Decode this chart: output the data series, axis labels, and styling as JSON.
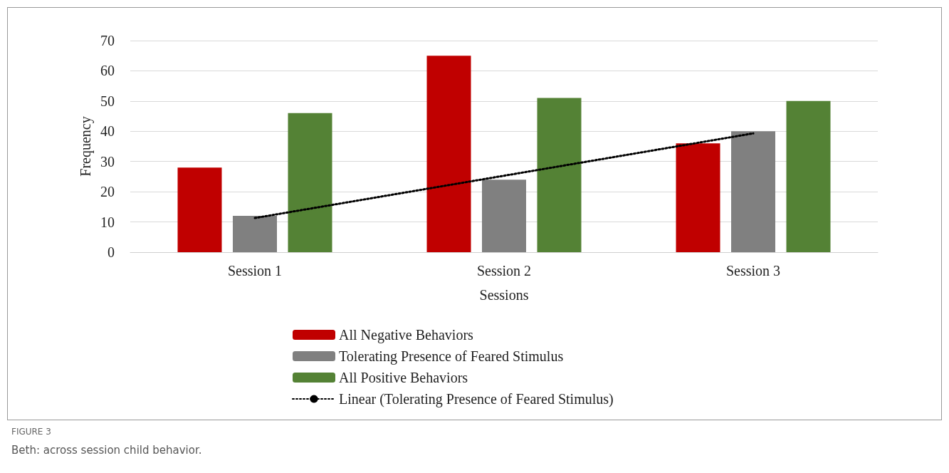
{
  "chart_data": {
    "type": "bar",
    "categories": [
      "Session 1",
      "Session 2",
      "Session 3"
    ],
    "xlabel": "Sessions",
    "ylabel": "Frequency",
    "ylim": [
      0,
      70
    ],
    "yticks": [
      0,
      10,
      20,
      30,
      40,
      50,
      60,
      70
    ],
    "grid": "y",
    "legend": "bottom",
    "series": [
      {
        "name": "All Negative Behaviors",
        "color": "#c00000",
        "values": [
          28,
          65,
          36
        ]
      },
      {
        "name": "Tolerating Presence of Feared Stimulus",
        "color": "#808080",
        "values": [
          12,
          24,
          40
        ]
      },
      {
        "name": "All Positive Behaviors",
        "color": "#548235",
        "values": [
          46,
          51,
          50
        ]
      },
      {
        "name": "Linear (Tolerating Presence of Feared Stimulus)",
        "type": "line",
        "color": "#000000",
        "line_style": "dotted",
        "marker": "none",
        "x": [
          "Session 1",
          "Session 2",
          "Session 3"
        ],
        "values": [
          11.3,
          25.3,
          39.3
        ]
      }
    ],
    "annotations": [
      "FIGURE 3",
      "Beth: across session child behavior."
    ]
  }
}
